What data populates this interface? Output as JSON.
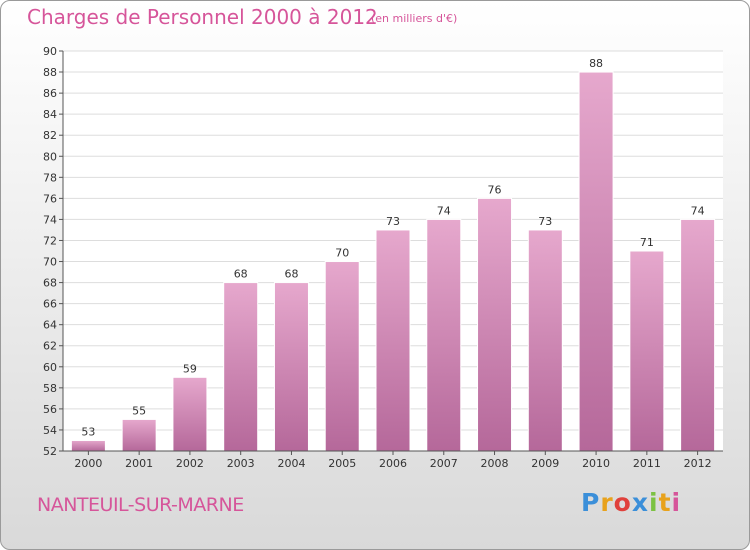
{
  "title": "Charges de Personnel 2000 à 2012",
  "subtitle": "(en milliers d'€)",
  "commune": "NANTEUIL-SUR-MARNE",
  "logo": [
    "P",
    "r",
    "o",
    "x",
    "i",
    "t",
    "i"
  ],
  "colors": {
    "accent": "#d6559a",
    "bar_top": "#e6a8cd",
    "bar_bottom": "#b5689a"
  },
  "chart_data": {
    "type": "bar",
    "categories": [
      "2000",
      "2001",
      "2002",
      "2003",
      "2004",
      "2005",
      "2006",
      "2007",
      "2008",
      "2009",
      "2010",
      "2011",
      "2012"
    ],
    "values": [
      53,
      55,
      59,
      68,
      68,
      70,
      73,
      74,
      76,
      73,
      88,
      71,
      74
    ],
    "title": "Charges de Personnel 2000 à 2012",
    "subtitle": "(en milliers d'€)",
    "xlabel": "",
    "ylabel": "",
    "ylim": [
      52,
      90
    ],
    "yticks": [
      52,
      54,
      56,
      58,
      60,
      62,
      64,
      66,
      68,
      70,
      72,
      74,
      76,
      78,
      80,
      82,
      84,
      86,
      88,
      90
    ],
    "grid": true,
    "legend": "none"
  }
}
